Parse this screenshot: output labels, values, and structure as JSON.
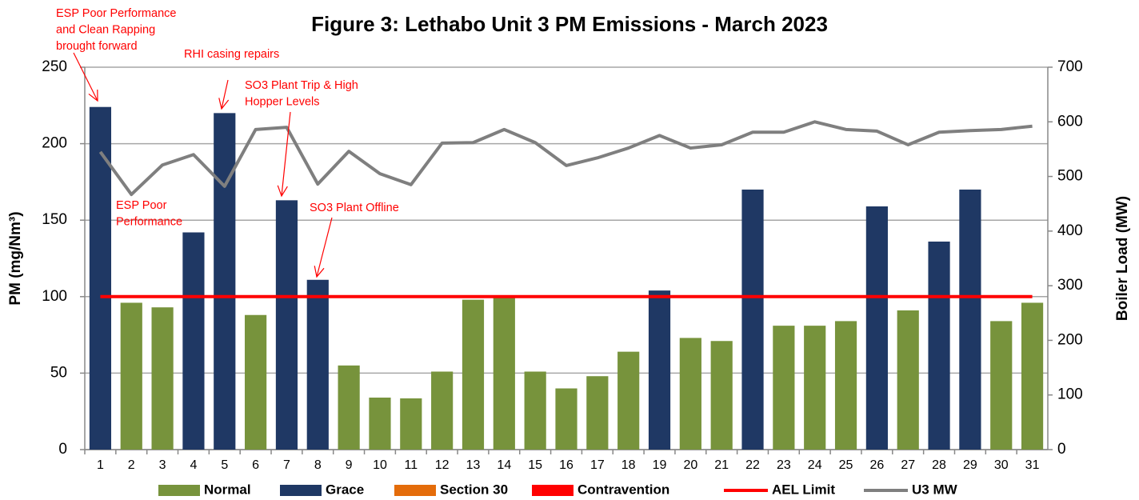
{
  "chart_data": {
    "type": "bar",
    "title": "Figure 3: Lethabo Unit 3 PM Emissions -  March 2023",
    "y_label": "PM (mg/Nm³)",
    "y2_label": "Boiler Load (MW)",
    "categories": [
      "1",
      "2",
      "3",
      "4",
      "5",
      "6",
      "7",
      "8",
      "9",
      "10",
      "11",
      "12",
      "13",
      "14",
      "15",
      "16",
      "17",
      "18",
      "19",
      "20",
      "21",
      "22",
      "23",
      "24",
      "25",
      "26",
      "27",
      "28",
      "29",
      "30",
      "31"
    ],
    "ylim": [
      0,
      250
    ],
    "yticks": [
      0,
      50,
      100,
      150,
      200,
      250
    ],
    "y2lim": [
      0,
      700
    ],
    "y2ticks": [
      0,
      100,
      200,
      300,
      400,
      500,
      600,
      700
    ],
    "grid": true,
    "legend": "bottom",
    "series": [
      {
        "name": "Normal",
        "mark": "bar",
        "color": "#77933c",
        "values": [
          null,
          96,
          93,
          null,
          null,
          88,
          null,
          null,
          55,
          34,
          33.5,
          51,
          98,
          100,
          51,
          40,
          48,
          64,
          null,
          73,
          71,
          null,
          81,
          81,
          84,
          null,
          91,
          null,
          null,
          84,
          96
        ]
      },
      {
        "name": "Grace",
        "mark": "bar",
        "color": "#1f3864",
        "values": [
          224,
          null,
          null,
          142,
          220,
          null,
          163,
          111,
          null,
          null,
          null,
          null,
          null,
          null,
          null,
          null,
          null,
          null,
          104,
          null,
          null,
          170,
          null,
          null,
          null,
          159,
          null,
          136,
          170,
          null,
          null
        ]
      },
      {
        "name": "Section 30",
        "mark": "bar",
        "color": "#e46c0a",
        "values": [
          null,
          null,
          null,
          null,
          null,
          null,
          null,
          null,
          null,
          null,
          null,
          null,
          null,
          null,
          null,
          null,
          null,
          null,
          null,
          null,
          null,
          null,
          null,
          null,
          null,
          null,
          null,
          null,
          null,
          null,
          null
        ]
      },
      {
        "name": "Contravention",
        "mark": "bar",
        "color": "#ff0000",
        "values": [
          null,
          null,
          null,
          null,
          null,
          null,
          null,
          null,
          null,
          null,
          null,
          null,
          null,
          null,
          null,
          null,
          null,
          null,
          null,
          null,
          null,
          null,
          null,
          null,
          null,
          null,
          null,
          null,
          null,
          null,
          null
        ]
      },
      {
        "name": "AEL Limit",
        "mark": "line",
        "color": "#ff0000",
        "values": [
          100,
          100,
          100,
          100,
          100,
          100,
          100,
          100,
          100,
          100,
          100,
          100,
          100,
          100,
          100,
          100,
          100,
          100,
          100,
          100,
          100,
          100,
          100,
          100,
          100,
          100,
          100,
          100,
          100,
          100,
          100
        ]
      },
      {
        "name": "U3 MW",
        "mark": "line",
        "color": "#7f7f7f",
        "axis": "y2",
        "values": [
          545,
          467,
          521,
          540,
          482,
          586,
          590,
          486,
          546,
          505,
          485,
          561,
          562,
          586,
          562,
          520,
          534,
          552,
          575,
          552,
          558,
          581,
          581,
          600,
          586,
          583,
          558,
          581,
          584,
          586,
          592
        ]
      }
    ],
    "annotations": [
      {
        "lines": [
          "ESP Poor Performance",
          "and Clean Rapping",
          "brought forward"
        ]
      },
      {
        "lines": [
          "RHI casing repairs"
        ]
      },
      {
        "lines": [
          "SO3 Plant Trip & High",
          "Hopper Levels"
        ]
      },
      {
        "lines": [
          "ESP Poor",
          "Performance"
        ]
      },
      {
        "lines": [
          "SO3 Plant Offline"
        ]
      }
    ]
  }
}
